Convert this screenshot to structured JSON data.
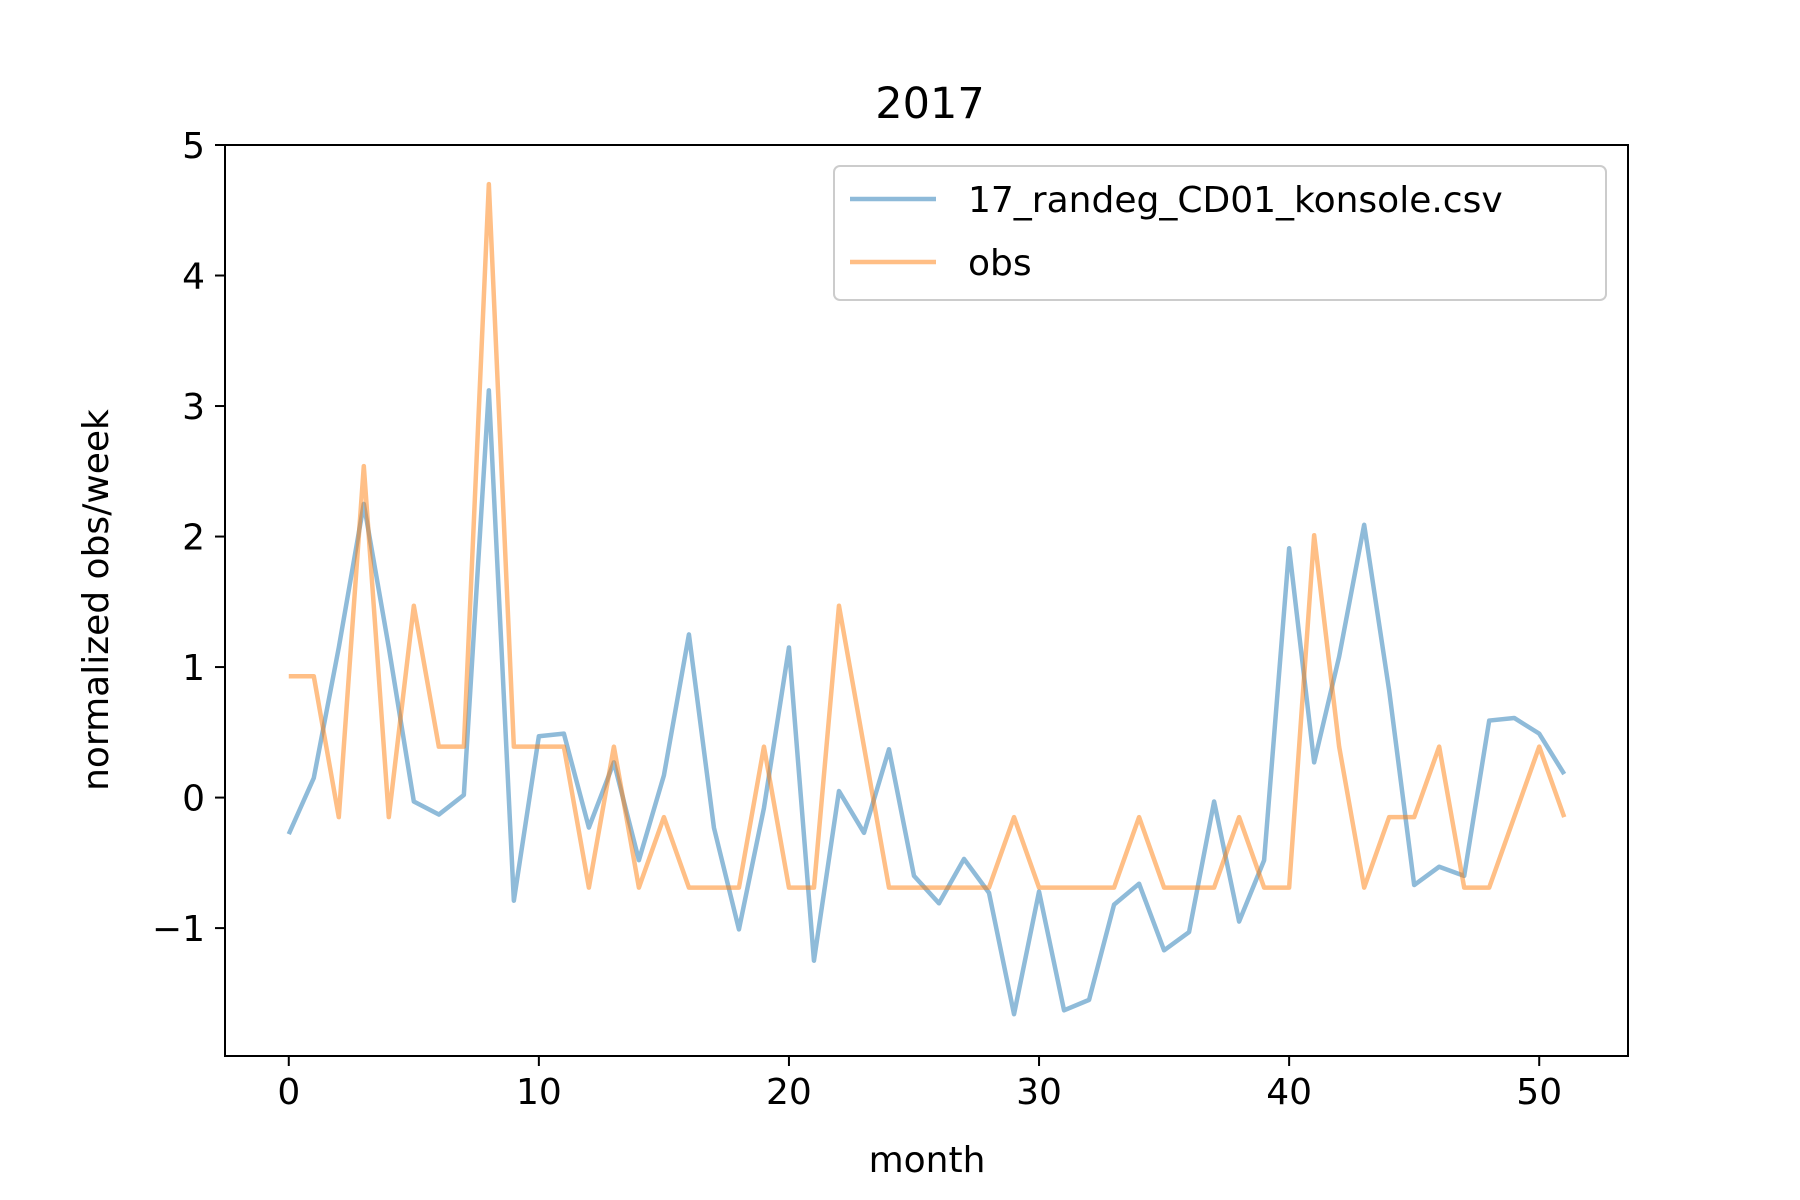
{
  "chart_data": {
    "type": "line",
    "title": "2017",
    "xlabel": "month",
    "ylabel": "normalized obs/week",
    "xlim": [
      -2.55,
      53.55
    ],
    "ylim": [
      -1.98,
      5.0
    ],
    "xticks": [
      0,
      10,
      20,
      30,
      40,
      50
    ],
    "xtick_labels": [
      "0",
      "10",
      "20",
      "30",
      "40",
      "50"
    ],
    "yticks": [
      -1,
      0,
      1,
      2,
      3,
      4,
      5
    ],
    "ytick_labels": [
      "−1",
      "0",
      "1",
      "2",
      "3",
      "4",
      "5"
    ],
    "grid": false,
    "legend_position": "top-right",
    "series": [
      {
        "name": "17_randeg_CD01_konsole.csv",
        "color": "#1f77b4",
        "x": [
          0,
          1,
          2,
          3,
          4,
          5,
          6,
          7,
          8,
          9,
          10,
          11,
          12,
          13,
          14,
          15,
          16,
          17,
          18,
          19,
          20,
          21,
          22,
          23,
          24,
          25,
          26,
          27,
          28,
          29,
          30,
          31,
          32,
          33,
          34,
          35,
          36,
          37,
          38,
          39,
          40,
          41,
          42,
          43,
          44,
          45,
          46,
          47,
          48,
          49,
          50,
          51
        ],
        "values": [
          -0.28,
          0.15,
          1.15,
          2.25,
          1.15,
          -0.03,
          -0.13,
          0.02,
          3.12,
          -0.79,
          0.47,
          0.49,
          -0.23,
          0.27,
          -0.48,
          0.17,
          1.25,
          -0.23,
          -1.01,
          -0.08,
          1.15,
          -1.25,
          0.05,
          -0.27,
          0.37,
          -0.6,
          -0.81,
          -0.47,
          -0.73,
          -1.66,
          -0.72,
          -1.63,
          -1.55,
          -0.82,
          -0.66,
          -1.17,
          -1.03,
          -0.03,
          -0.95,
          -0.48,
          1.91,
          0.27,
          1.08,
          2.09,
          0.82,
          -0.67,
          -0.53,
          -0.6,
          0.59,
          0.61,
          0.49,
          0.18
        ]
      },
      {
        "name": "obs",
        "color": "#ff7f0e",
        "x": [
          0,
          1,
          2,
          3,
          4,
          5,
          6,
          7,
          8,
          9,
          10,
          11,
          12,
          13,
          14,
          15,
          16,
          17,
          18,
          19,
          20,
          21,
          22,
          23,
          24,
          25,
          26,
          27,
          28,
          29,
          30,
          31,
          32,
          33,
          34,
          35,
          36,
          37,
          38,
          39,
          40,
          41,
          42,
          43,
          44,
          45,
          46,
          47,
          48,
          49,
          50,
          51
        ],
        "values": [
          0.93,
          0.93,
          -0.15,
          2.54,
          -0.15,
          1.47,
          0.39,
          0.39,
          4.7,
          0.39,
          0.39,
          0.39,
          -0.69,
          0.39,
          -0.69,
          -0.15,
          -0.69,
          -0.69,
          -0.69,
          0.39,
          -0.69,
          -0.69,
          1.47,
          0.39,
          -0.69,
          -0.69,
          -0.69,
          -0.69,
          -0.69,
          -0.15,
          -0.69,
          -0.69,
          -0.69,
          -0.69,
          -0.15,
          -0.69,
          -0.69,
          -0.69,
          -0.15,
          -0.69,
          -0.69,
          2.01,
          0.39,
          -0.69,
          -0.15,
          -0.15,
          0.39,
          -0.69,
          -0.69,
          -0.15,
          0.39,
          -0.15
        ]
      }
    ]
  }
}
